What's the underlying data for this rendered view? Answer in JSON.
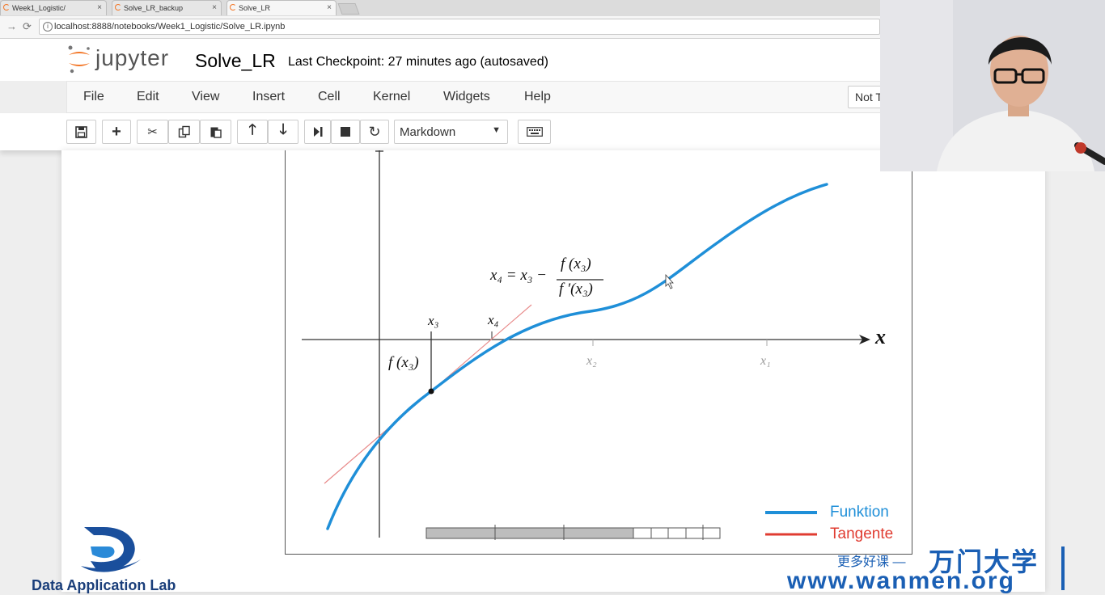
{
  "browser": {
    "tabs": [
      {
        "label": "Week1_Logistic/",
        "close": "×"
      },
      {
        "label": "Solve_LR_backup",
        "close": "×"
      },
      {
        "label": "Solve_LR",
        "close": "×"
      }
    ],
    "url": "localhost:8888/notebooks/Week1_Logistic/Solve_LR.ipynb"
  },
  "jupyter": {
    "brand": "jupyter",
    "notebook_name": "Solve_LR",
    "checkpoint": "Last Checkpoint: 27 minutes ago (autosaved)",
    "menu": [
      "File",
      "Edit",
      "View",
      "Insert",
      "Cell",
      "Kernel",
      "Widgets",
      "Help"
    ],
    "kernel_status": "Not T",
    "cell_type": "Markdown"
  },
  "figure": {
    "formula": {
      "lhs": "x₄ = x₃ −",
      "numerator": "f (x₃)",
      "denominator": "f ′(x₃)"
    },
    "labels": {
      "x3": "x₃",
      "x4": "x₄",
      "fx3": "f (x₃)",
      "x2": "x₂",
      "x1": "x₁",
      "axis_x": "x"
    },
    "legend": [
      {
        "name": "Funktion",
        "color": "#1f8fd8"
      },
      {
        "name": "Tangente",
        "color": "#e03c31"
      }
    ],
    "colors": {
      "function": "#1f8fd8",
      "tangent": "#e88a8a"
    }
  },
  "watermarks": {
    "lab": "Data Application Lab",
    "cn_small": "更多好课 —",
    "cn_big": "万门大学",
    "url": "www.wanmen.org"
  }
}
